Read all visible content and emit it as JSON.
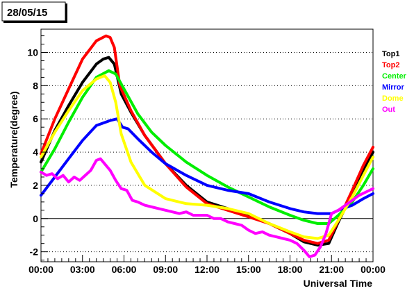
{
  "chart_data": {
    "type": "line",
    "date_label": "28/05/15",
    "xlabel": "Universal Time",
    "ylabel": "Temperature(degree)",
    "x_range_hours": [
      0,
      24
    ],
    "ylim": [
      -2.6,
      11.4
    ],
    "grid": "horizontal dotted lines at y ticks",
    "legend_placement": "right, outside plot",
    "x_ticks": [
      {
        "hour": 0,
        "label": "00:00"
      },
      {
        "hour": 3,
        "label": "03:00"
      },
      {
        "hour": 6,
        "label": "06:00"
      },
      {
        "hour": 9,
        "label": "09:00"
      },
      {
        "hour": 12,
        "label": "12:00"
      },
      {
        "hour": 15,
        "label": "15:00"
      },
      {
        "hour": 18,
        "label": "18:00"
      },
      {
        "hour": 21,
        "label": "21:00"
      },
      {
        "hour": 24,
        "label": "00:00"
      }
    ],
    "y_ticks": [
      {
        "value": -2,
        "label": "-2"
      },
      {
        "value": 0,
        "label": "0"
      },
      {
        "value": 2,
        "label": "2"
      },
      {
        "value": 4,
        "label": "4"
      },
      {
        "value": 6,
        "label": "6"
      },
      {
        "value": 8,
        "label": "8"
      },
      {
        "value": 10,
        "label": "10"
      }
    ],
    "series": [
      {
        "name": "Top1",
        "color": "#000000",
        "x": [
          0,
          1,
          2,
          3,
          4,
          4.5,
          4.9,
          5.3,
          5.8,
          6.5,
          7.5,
          9,
          10.5,
          12,
          13.5,
          15,
          16.5,
          18,
          19,
          20,
          20.8,
          21.5,
          22.5,
          23.3,
          24
        ],
        "y": [
          3.4,
          5.3,
          6.8,
          8.2,
          9.3,
          9.6,
          9.7,
          9.3,
          7.5,
          6.4,
          5.0,
          3.3,
          2.0,
          1.0,
          0.6,
          0.2,
          -0.3,
          -0.9,
          -1.4,
          -1.6,
          -1.5,
          -0.2,
          1.5,
          2.9,
          4.0
        ]
      },
      {
        "name": "Top2",
        "color": "#ff0000",
        "x": [
          0,
          1,
          2,
          3,
          4,
          4.7,
          5.0,
          5.3,
          5.7,
          6.5,
          7.5,
          9,
          10.5,
          12,
          13.5,
          15,
          16.5,
          18,
          19,
          20,
          20.8,
          21.5,
          22.5,
          23.3,
          24
        ],
        "y": [
          3.9,
          6.0,
          7.8,
          9.6,
          10.7,
          11.0,
          10.9,
          10.3,
          8.0,
          6.5,
          5.0,
          3.3,
          1.9,
          0.9,
          0.5,
          0.1,
          -0.3,
          -0.9,
          -1.3,
          -1.5,
          -1.3,
          -0.1,
          1.7,
          3.2,
          4.3
        ]
      },
      {
        "name": "Center",
        "color": "#00ee00",
        "x": [
          0,
          1,
          2,
          3,
          4,
          4.9,
          5.4,
          6,
          7,
          8,
          9,
          10.5,
          12,
          13.5,
          15,
          16.5,
          18,
          19,
          20,
          20.8,
          21.5,
          22.5,
          23.3,
          24
        ],
        "y": [
          2.8,
          4.2,
          5.8,
          7.3,
          8.5,
          8.9,
          8.7,
          7.8,
          6.3,
          5.2,
          4.4,
          3.4,
          2.6,
          1.9,
          1.3,
          0.7,
          0.2,
          -0.1,
          -0.3,
          -0.3,
          0.2,
          1.0,
          2.0,
          3.0
        ]
      },
      {
        "name": "Mirror",
        "color": "#0000ff",
        "x": [
          0,
          1,
          2,
          3,
          4,
          5,
          5.5,
          5.9,
          6.3,
          7,
          8,
          9,
          10.5,
          12,
          13.5,
          15,
          16.5,
          18,
          19,
          20,
          21,
          21.5,
          22.5,
          23.3,
          24
        ],
        "y": [
          1.4,
          2.5,
          3.6,
          4.7,
          5.6,
          5.9,
          6.0,
          5.5,
          5.4,
          4.8,
          4.0,
          3.3,
          2.6,
          2.0,
          1.7,
          1.5,
          1.0,
          0.6,
          0.4,
          0.3,
          0.3,
          0.5,
          0.8,
          1.2,
          1.5
        ]
      },
      {
        "name": "Dome",
        "color": "#ffff00",
        "x": [
          0,
          1,
          2,
          3,
          4,
          4.6,
          5.0,
          5.4,
          5.8,
          6.5,
          7.5,
          9,
          10.5,
          12,
          13.5,
          15,
          16.5,
          18,
          19,
          20,
          20.8,
          21.5,
          22.5,
          23.3,
          24
        ],
        "y": [
          3.7,
          5.2,
          6.5,
          7.7,
          8.4,
          8.6,
          8.2,
          7.0,
          5.1,
          3.4,
          2.0,
          1.2,
          0.9,
          0.8,
          0.6,
          0.3,
          -0.3,
          -0.8,
          -1.1,
          -1.2,
          -1.0,
          -0.1,
          1.3,
          2.6,
          3.7
        ]
      },
      {
        "name": "Out",
        "color": "#ff00ff",
        "x": [
          0,
          0.4,
          0.8,
          1.2,
          1.6,
          2,
          2.4,
          2.8,
          3.2,
          3.6,
          4,
          4.3,
          4.6,
          5.0,
          5.4,
          5.8,
          6.2,
          6.6,
          7.0,
          7.5,
          8,
          8.5,
          9,
          9.5,
          10,
          10.5,
          11,
          11.5,
          12,
          12.5,
          13,
          13.5,
          14,
          14.5,
          15,
          15.5,
          16,
          16.5,
          17,
          17.5,
          18,
          18.5,
          19,
          19.4,
          19.8,
          20.2,
          20.6,
          21,
          21.5,
          22,
          22.5,
          23,
          23.5,
          24
        ],
        "y": [
          2.8,
          2.6,
          2.7,
          2.4,
          2.6,
          2.2,
          2.5,
          2.3,
          2.6,
          2.9,
          3.5,
          3.6,
          3.3,
          2.9,
          2.3,
          1.8,
          1.7,
          1.1,
          1.0,
          0.8,
          0.7,
          0.6,
          0.5,
          0.4,
          0.3,
          0.4,
          0.2,
          0.2,
          0.2,
          0.0,
          0.0,
          -0.2,
          -0.3,
          -0.4,
          -0.7,
          -0.9,
          -0.8,
          -1.0,
          -1.1,
          -1.2,
          -1.3,
          -1.5,
          -1.9,
          -2.3,
          -2.2,
          -1.7,
          -0.9,
          0.3,
          0.5,
          0.8,
          1.1,
          1.4,
          1.6,
          1.8
        ]
      }
    ]
  }
}
